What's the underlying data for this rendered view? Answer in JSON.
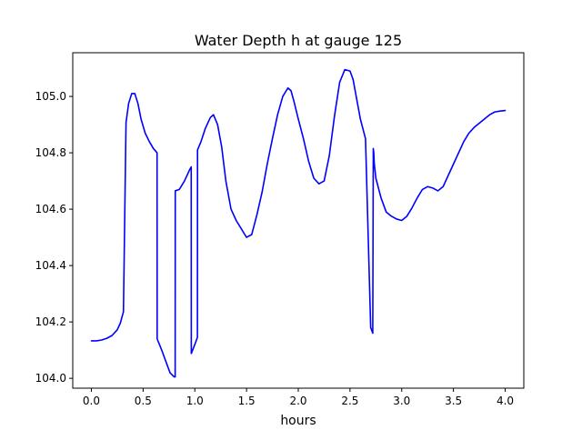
{
  "chart_data": {
    "type": "line",
    "title": "Water Depth h at gauge 125",
    "xlabel": "hours",
    "ylabel": "",
    "xlim": [
      -0.18,
      4.18
    ],
    "ylim": [
      103.965,
      105.155
    ],
    "grid": false,
    "x_ticks": [
      0.0,
      0.5,
      1.0,
      1.5,
      2.0,
      2.5,
      3.0,
      3.5,
      4.0
    ],
    "x_tick_labels": [
      "0.0",
      "0.5",
      "1.0",
      "1.5",
      "2.0",
      "2.5",
      "3.0",
      "3.5",
      "4.0"
    ],
    "y_ticks": [
      104.0,
      104.2,
      104.4,
      104.6,
      104.8,
      105.0
    ],
    "y_tick_labels": [
      "104.0",
      "104.2",
      "104.4",
      "104.6",
      "104.8",
      "105.0"
    ],
    "series": [
      {
        "color": "#0000ff",
        "x": [
          0.0,
          0.05,
          0.1,
          0.15,
          0.2,
          0.25,
          0.28,
          0.31,
          0.335,
          0.336,
          0.36,
          0.39,
          0.42,
          0.45,
          0.48,
          0.52,
          0.56,
          0.6,
          0.635,
          0.636,
          0.68,
          0.72,
          0.76,
          0.8,
          0.81,
          0.811,
          0.85,
          0.9,
          0.95,
          0.965,
          0.966,
          1.0,
          1.025,
          1.026,
          1.06,
          1.1,
          1.15,
          1.18,
          1.22,
          1.26,
          1.3,
          1.35,
          1.4,
          1.45,
          1.5,
          1.55,
          1.6,
          1.65,
          1.7,
          1.75,
          1.8,
          1.85,
          1.9,
          1.93,
          1.96,
          2.0,
          2.05,
          2.1,
          2.15,
          2.2,
          2.25,
          2.3,
          2.35,
          2.4,
          2.45,
          2.5,
          2.53,
          2.56,
          2.6,
          2.65,
          2.7,
          2.72,
          2.725,
          2.73,
          2.735,
          2.75,
          2.8,
          2.85,
          2.9,
          2.95,
          3.0,
          3.05,
          3.1,
          3.15,
          3.2,
          3.25,
          3.3,
          3.35,
          3.4,
          3.45,
          3.5,
          3.55,
          3.6,
          3.65,
          3.7,
          3.75,
          3.8,
          3.85,
          3.9,
          3.95,
          4.0
        ],
        "y": [
          104.133,
          104.133,
          104.136,
          104.142,
          104.152,
          104.172,
          104.196,
          104.236,
          104.91,
          104.91,
          104.975,
          105.01,
          105.01,
          104.975,
          104.92,
          104.87,
          104.84,
          104.815,
          104.8,
          104.14,
          104.1,
          104.06,
          104.02,
          104.005,
          104.005,
          104.665,
          104.67,
          104.7,
          104.74,
          104.75,
          104.088,
          104.12,
          104.145,
          104.81,
          104.84,
          104.885,
          104.925,
          104.935,
          104.9,
          104.82,
          104.7,
          104.6,
          104.56,
          104.53,
          104.5,
          104.51,
          104.58,
          104.66,
          104.76,
          104.85,
          104.935,
          105.0,
          105.03,
          105.02,
          104.98,
          104.92,
          104.85,
          104.77,
          104.71,
          104.69,
          104.7,
          104.79,
          104.93,
          105.05,
          105.095,
          105.09,
          105.06,
          105.0,
          104.92,
          104.85,
          104.18,
          104.16,
          104.815,
          104.8,
          104.76,
          104.71,
          104.64,
          104.59,
          104.575,
          104.565,
          104.56,
          104.575,
          104.605,
          104.64,
          104.67,
          104.68,
          104.675,
          104.665,
          104.68,
          104.72,
          104.76,
          104.8,
          104.84,
          104.87,
          104.89,
          104.905,
          104.92,
          104.935,
          104.945,
          104.948,
          104.95
        ]
      }
    ]
  }
}
